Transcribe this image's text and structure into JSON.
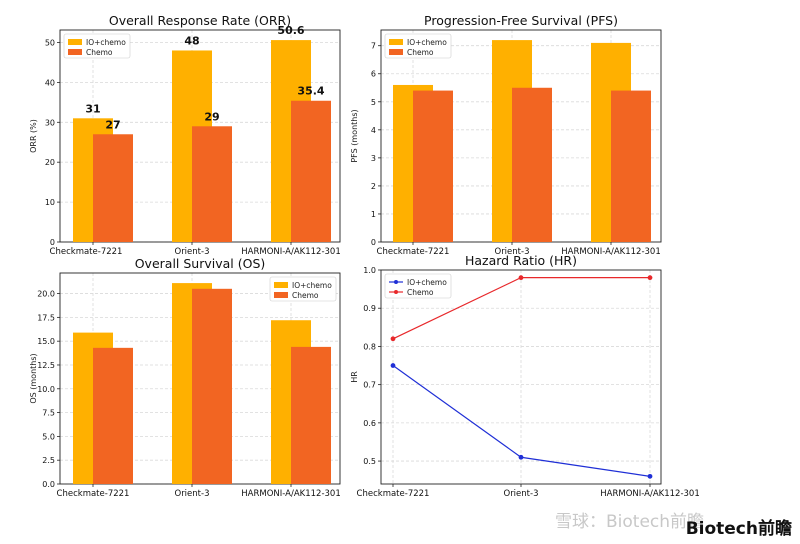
{
  "colors": {
    "io": "#FFB000",
    "chemo": "#F26522",
    "hr_io": "#1f2fd6",
    "hr_chemo": "#e8282b"
  },
  "chart_data": [
    {
      "id": "orr",
      "type": "bar",
      "title": "Overall Response Rate (ORR)",
      "ylabel": "ORR (%)",
      "categories": [
        "Checkmate-7221",
        "Orient-3",
        "HARMONI-A/AK112-301"
      ],
      "series": [
        {
          "name": "IO+chemo",
          "values": [
            31,
            48,
            50.6
          ]
        },
        {
          "name": "Chemo",
          "values": [
            27,
            29,
            35.4
          ]
        }
      ],
      "value_labels": [
        [
          "31",
          "48",
          "50.6"
        ],
        [
          "27",
          "29",
          "35.4"
        ]
      ],
      "ylim": [
        0,
        53.13
      ],
      "yticks": [
        0,
        10,
        20,
        30,
        40,
        50
      ],
      "grid": true,
      "legend": "top-left"
    },
    {
      "id": "pfs",
      "type": "bar",
      "title": "Progression-Free Survival (PFS)",
      "ylabel": "PFS (months)",
      "categories": [
        "Checkmate-7221",
        "Orient-3",
        "HARMONI-A/AK112-301"
      ],
      "series": [
        {
          "name": "IO+chemo",
          "values": [
            5.6,
            7.2,
            7.1
          ]
        },
        {
          "name": "Chemo",
          "values": [
            5.4,
            5.5,
            5.4
          ]
        }
      ],
      "ylim": [
        0,
        7.56
      ],
      "yticks": [
        0,
        1,
        2,
        3,
        4,
        5,
        6,
        7
      ],
      "grid": true,
      "legend": "top-left"
    },
    {
      "id": "os",
      "type": "bar",
      "title": "Overall Survival (OS)",
      "ylabel": "OS (months)",
      "categories": [
        "Checkmate-7221",
        "Orient-3",
        "HARMONI-A/AK112-301"
      ],
      "series": [
        {
          "name": "IO+chemo",
          "values": [
            15.9,
            21.1,
            17.2
          ]
        },
        {
          "name": "Chemo",
          "values": [
            14.3,
            20.5,
            14.4
          ]
        }
      ],
      "ylim": [
        0,
        22.16
      ],
      "yticks": [
        0.0,
        2.5,
        5.0,
        7.5,
        10.0,
        12.5,
        15.0,
        17.5,
        20.0
      ],
      "ytick_labels": [
        "0.0",
        "2.5",
        "5.0",
        "7.5",
        "10.0",
        "12.5",
        "15.0",
        "17.5",
        "20.0"
      ],
      "grid": true,
      "legend": "top-right"
    },
    {
      "id": "hr",
      "type": "line",
      "title": "Hazard Ratio (HR)",
      "ylabel": "HR",
      "categories": [
        "Checkmate-7221",
        "Orient-3",
        "HARMONI-A/AK112-301"
      ],
      "series": [
        {
          "name": "IO+chemo",
          "values": [
            0.75,
            0.51,
            0.46
          ]
        },
        {
          "name": "Chemo",
          "values": [
            0.82,
            0.98,
            0.98
          ]
        }
      ],
      "ylim": [
        0.44,
        1.0
      ],
      "yticks": [
        0.5,
        0.6,
        0.7,
        0.8,
        0.9,
        1.0
      ],
      "ytick_labels": [
        "0.5",
        "0.6",
        "0.7",
        "0.8",
        "0.9",
        "1.0"
      ],
      "grid": true,
      "legend": "top-left"
    }
  ],
  "watermark": {
    "text": "雪球：Biotech前瞻"
  },
  "brand": {
    "text": "Biotech前瞻"
  }
}
